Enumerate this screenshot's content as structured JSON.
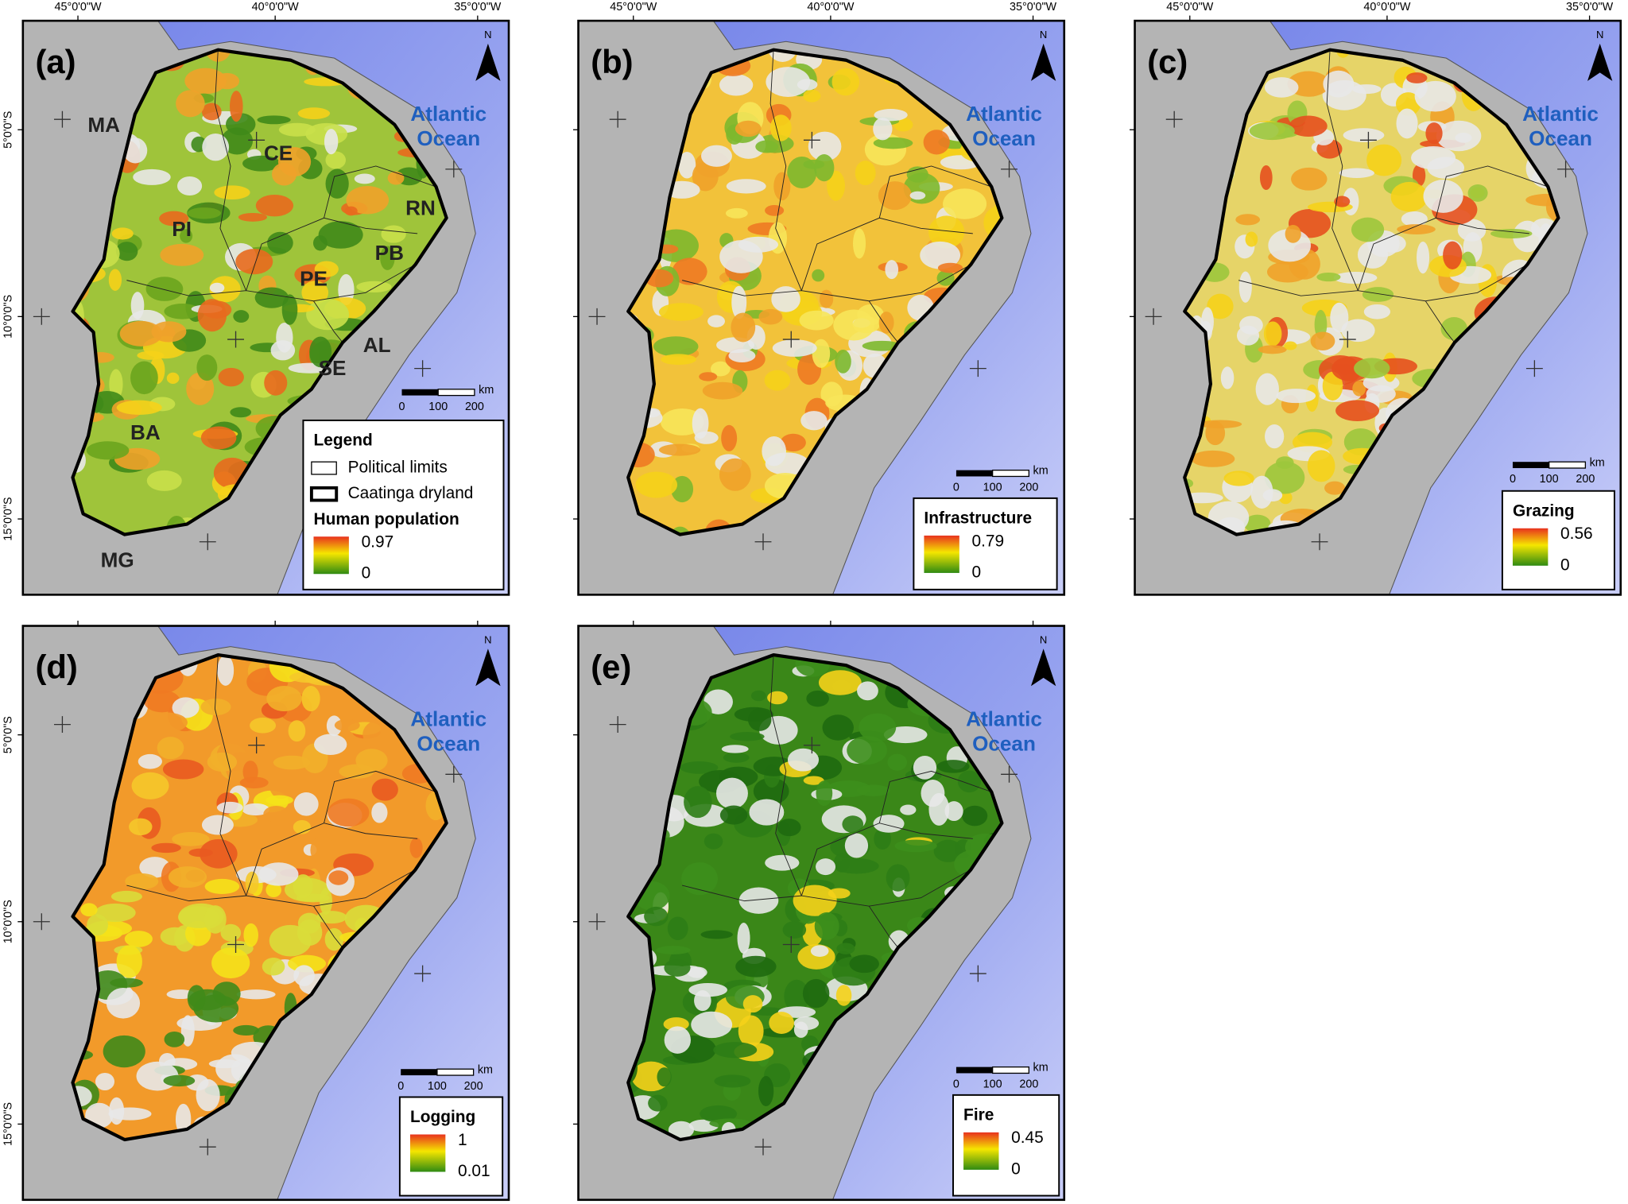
{
  "x_tick_labels": [
    "45°0'0\"W",
    "40°0'0\"W",
    "35°0'0\"W"
  ],
  "y_tick_labels": [
    "5°0'0\"S",
    "10°0'0\"S",
    "15°0'0\"S"
  ],
  "north": "N",
  "ocean_label": [
    "Atlantic",
    "Ocean"
  ],
  "scale_bar": {
    "unit": "km",
    "ticks": [
      0,
      100,
      200
    ]
  },
  "legend": {
    "title": "Legend",
    "items": [
      "Political limits",
      "Caatinga dryland"
    ]
  },
  "state_labels": [
    "MA",
    "CE",
    "RN",
    "PI",
    "PB",
    "PE",
    "AL",
    "SE",
    "BA",
    "MG"
  ],
  "panels": [
    {
      "label": "(a)",
      "variable": "Human population",
      "max": 0.97,
      "min": 0
    },
    {
      "label": "(b)",
      "variable": "Infrastructure",
      "max": 0.79,
      "min": 0
    },
    {
      "label": "(c)",
      "variable": "Grazing",
      "max": 0.56,
      "min": 0
    },
    {
      "label": "(d)",
      "variable": "Logging",
      "max": 1,
      "min": 0.01
    },
    {
      "label": "(e)",
      "variable": "Fire",
      "max": 0.45,
      "min": 0
    }
  ]
}
